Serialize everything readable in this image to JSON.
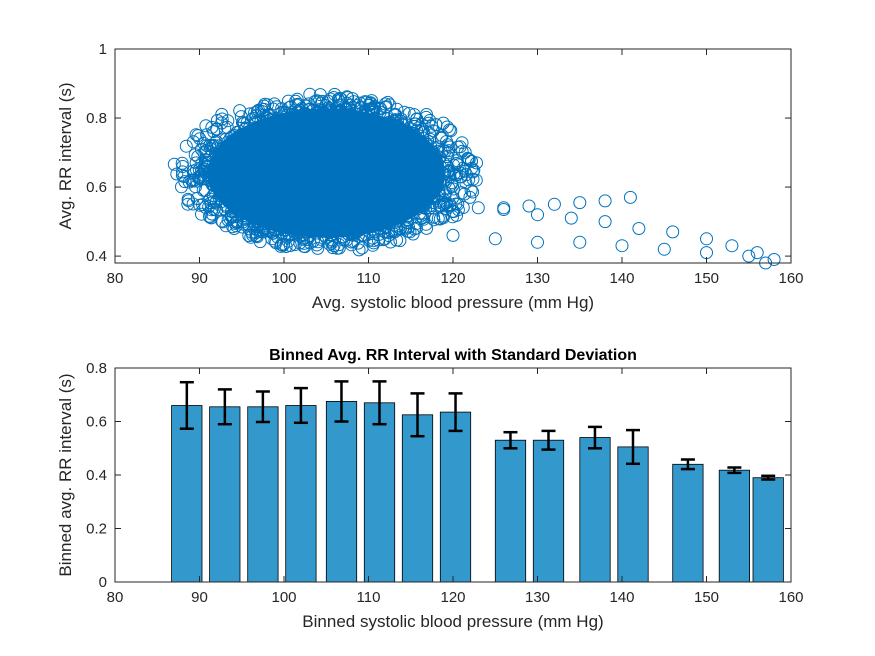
{
  "chart_data": [
    {
      "type": "scatter",
      "title": "",
      "xlabel": "Avg. systolic blood pressure (mm Hg)",
      "ylabel": "Avg. RR interval (s)",
      "xlim": [
        80,
        160
      ],
      "ylim": [
        0.38,
        1
      ],
      "xticks": [
        80,
        90,
        100,
        110,
        120,
        130,
        140,
        150,
        160
      ],
      "yticks": [
        0.4,
        0.6,
        0.8,
        1
      ],
      "ytick_labels": [
        "0.4",
        "0.6",
        "0.8",
        "1"
      ],
      "marker": "circle-open",
      "color": "#0072BD",
      "cloud": {
        "x_center": 105,
        "y_center": 0.64,
        "x_range": [
          87,
          126
        ],
        "y_range": [
          0.41,
          0.93
        ]
      },
      "tails": [
        {
          "x": [
            120,
            123,
            126,
            129,
            132,
            135,
            138,
            141
          ],
          "y": [
            0.53,
            0.54,
            0.535,
            0.545,
            0.55,
            0.555,
            0.56,
            0.57
          ]
        },
        {
          "x": [
            118,
            122,
            126,
            130,
            134,
            138,
            142,
            146,
            150,
            153,
            156,
            158
          ],
          "y": [
            0.6,
            0.57,
            0.54,
            0.52,
            0.51,
            0.5,
            0.48,
            0.47,
            0.45,
            0.43,
            0.41,
            0.39
          ]
        },
        {
          "x": [
            120,
            125,
            130,
            135,
            140,
            145,
            150,
            155,
            157
          ],
          "y": [
            0.46,
            0.45,
            0.44,
            0.44,
            0.43,
            0.42,
            0.41,
            0.4,
            0.38
          ]
        }
      ]
    },
    {
      "type": "bar",
      "title": "Binned Avg. RR Interval with Standard Deviation",
      "xlabel": "Binned systolic blood pressure (mm Hg)",
      "ylabel": "Binned avg. RR interval (s)",
      "xlim": [
        80,
        160
      ],
      "ylim": [
        0,
        0.8
      ],
      "xticks": [
        80,
        90,
        100,
        110,
        120,
        130,
        140,
        150,
        160
      ],
      "yticks": [
        0,
        0.2,
        0.4,
        0.6,
        0.8
      ],
      "ytick_labels": [
        "0",
        "0.2",
        "0.4",
        "0.6",
        "0.8"
      ],
      "color": "#3399CC",
      "bar_width": 3.6,
      "bars": [
        {
          "x": 88.5,
          "value": 0.66,
          "std": 0.087
        },
        {
          "x": 93,
          "value": 0.655,
          "std": 0.065
        },
        {
          "x": 97.5,
          "value": 0.655,
          "std": 0.057
        },
        {
          "x": 102,
          "value": 0.66,
          "std": 0.065
        },
        {
          "x": 106.8,
          "value": 0.675,
          "std": 0.075
        },
        {
          "x": 111.3,
          "value": 0.67,
          "std": 0.08
        },
        {
          "x": 115.8,
          "value": 0.625,
          "std": 0.08
        },
        {
          "x": 120.3,
          "value": 0.635,
          "std": 0.07
        },
        {
          "x": 126.8,
          "value": 0.53,
          "std": 0.03
        },
        {
          "x": 131.3,
          "value": 0.53,
          "std": 0.035
        },
        {
          "x": 136.8,
          "value": 0.54,
          "std": 0.04
        },
        {
          "x": 141.3,
          "value": 0.505,
          "std": 0.063
        },
        {
          "x": 147.8,
          "value": 0.44,
          "std": 0.018
        },
        {
          "x": 153.3,
          "value": 0.418,
          "std": 0.01
        },
        {
          "x": 157.3,
          "value": 0.39,
          "std": 0.007
        }
      ]
    }
  ]
}
